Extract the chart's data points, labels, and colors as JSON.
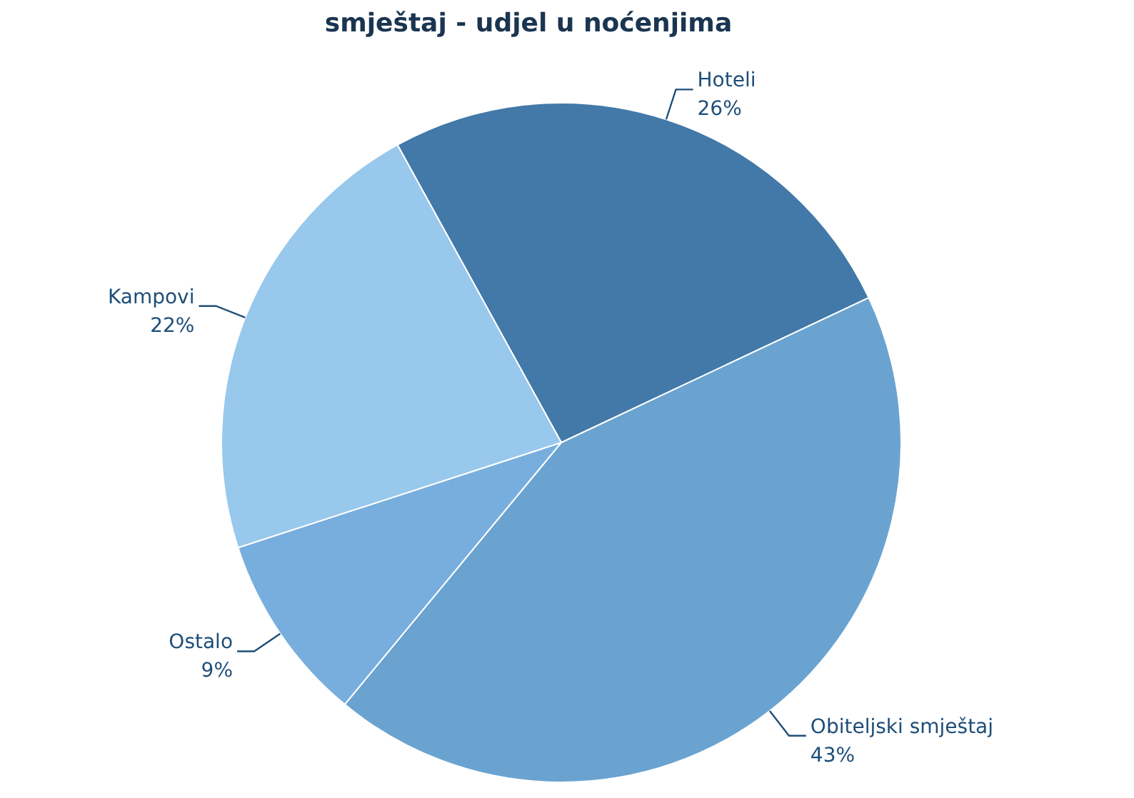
{
  "chart_data": {
    "type": "pie",
    "title": "smještaj - udjel u noćenjima",
    "categories": [
      "Hoteli",
      "Obiteljski smještaj",
      "Ostalo",
      "Kampovi"
    ],
    "values": [
      26,
      43,
      9,
      22
    ],
    "colors": [
      "#4279a8",
      "#6aa3d0",
      "#78aedd",
      "#98c8ec"
    ],
    "value_labels": [
      "26%",
      "43%",
      "9%",
      "22%"
    ]
  }
}
